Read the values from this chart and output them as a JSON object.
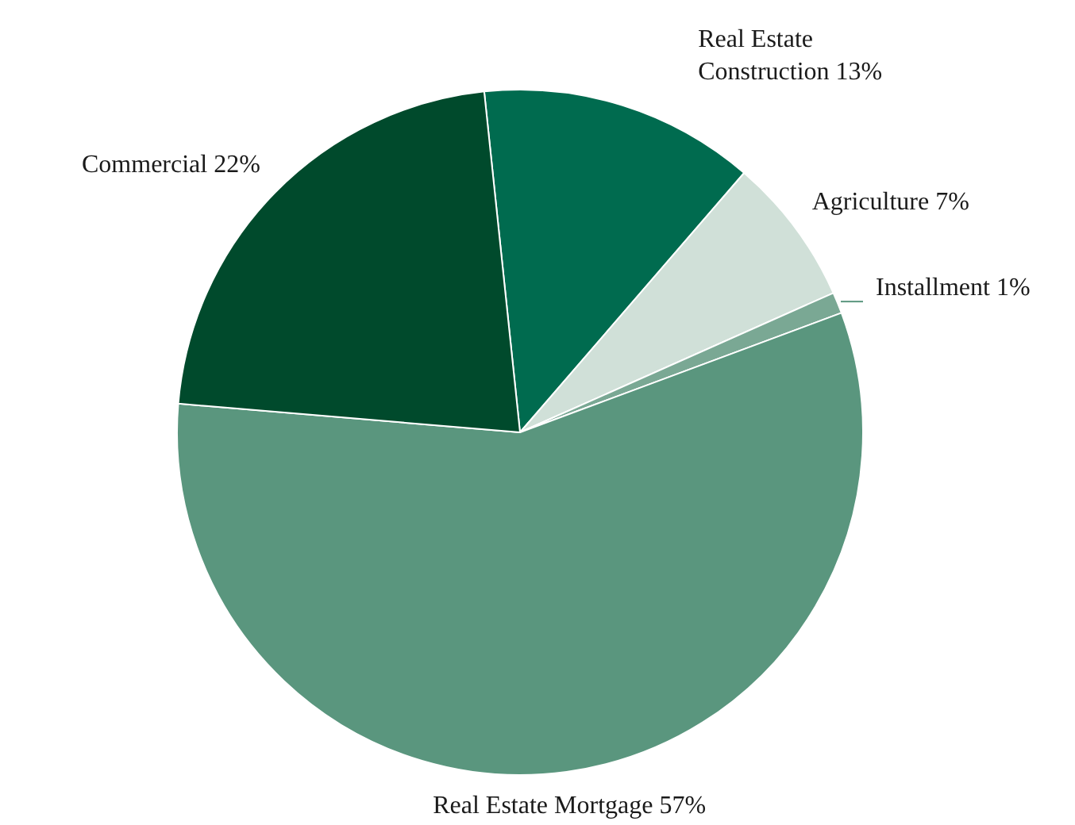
{
  "chart_data": {
    "type": "pie",
    "categories": [
      "Real Estate\nConstruction",
      "Agriculture",
      "Installment",
      "Real Estate Mortgage",
      "Commercial"
    ],
    "values": [
      13,
      7,
      1,
      57,
      22
    ],
    "value_labels": [
      "13%",
      "7%",
      "1%",
      "57%",
      "22%"
    ],
    "colors": [
      "#006b4f",
      "#d0e0d8",
      "#7aa894",
      "#5a967e",
      "#004a2c"
    ]
  }
}
